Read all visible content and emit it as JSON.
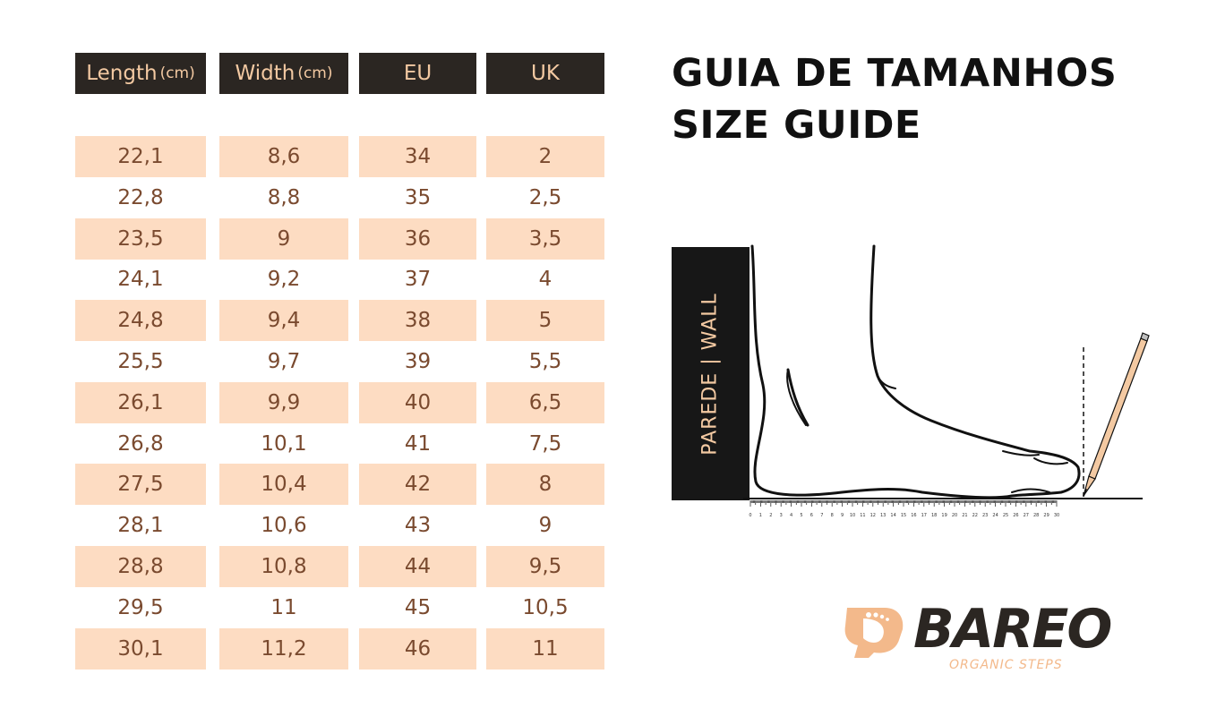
{
  "headers": {
    "length_main": "Length",
    "length_unit": "(cm)",
    "width_main": "Width",
    "width_unit": "(cm)",
    "eu": "EU",
    "uk": "UK"
  },
  "rows": [
    [
      "22,1",
      "8,6",
      "34",
      "2"
    ],
    [
      "22,8",
      "8,8",
      "35",
      "2,5"
    ],
    [
      "23,5",
      "9",
      "36",
      "3,5"
    ],
    [
      "24,1",
      "9,2",
      "37",
      "4"
    ],
    [
      "24,8",
      "9,4",
      "38",
      "5"
    ],
    [
      "25,5",
      "9,7",
      "39",
      "5,5"
    ],
    [
      "26,1",
      "9,9",
      "40",
      "6,5"
    ],
    [
      "26,8",
      "10,1",
      "41",
      "7,5"
    ],
    [
      "27,5",
      "10,4",
      "42",
      "8"
    ],
    [
      "28,1",
      "10,6",
      "43",
      "9"
    ],
    [
      "28,8",
      "10,8",
      "44",
      "9,5"
    ],
    [
      "29,5",
      "11",
      "45",
      "10,5"
    ],
    [
      "30,1",
      "11,2",
      "46",
      "11"
    ]
  ],
  "title": {
    "line1": "GUIA DE TAMANHOS",
    "line2": "SIZE GUIDE"
  },
  "wall_label": "PAREDE  |  WALL",
  "ruler_labels": [
    "0",
    "1",
    "2",
    "3",
    "4",
    "5",
    "6",
    "7",
    "8",
    "9",
    "10",
    "11",
    "12",
    "13",
    "14",
    "15",
    "16",
    "17",
    "18",
    "19",
    "20",
    "21",
    "22",
    "23",
    "24",
    "25",
    "26",
    "27",
    "28",
    "29",
    "30"
  ],
  "logo": {
    "name": "BAREO",
    "tagline": "ORGANIC STEPS"
  },
  "colors": {
    "header_bg": "#2b2622",
    "accent": "#f3c9a2",
    "row_shade": "#fddcc2",
    "cell_text": "#7a4a2f"
  },
  "icons": [
    "foot-illustration",
    "pencil-icon",
    "foot-logo-icon"
  ]
}
